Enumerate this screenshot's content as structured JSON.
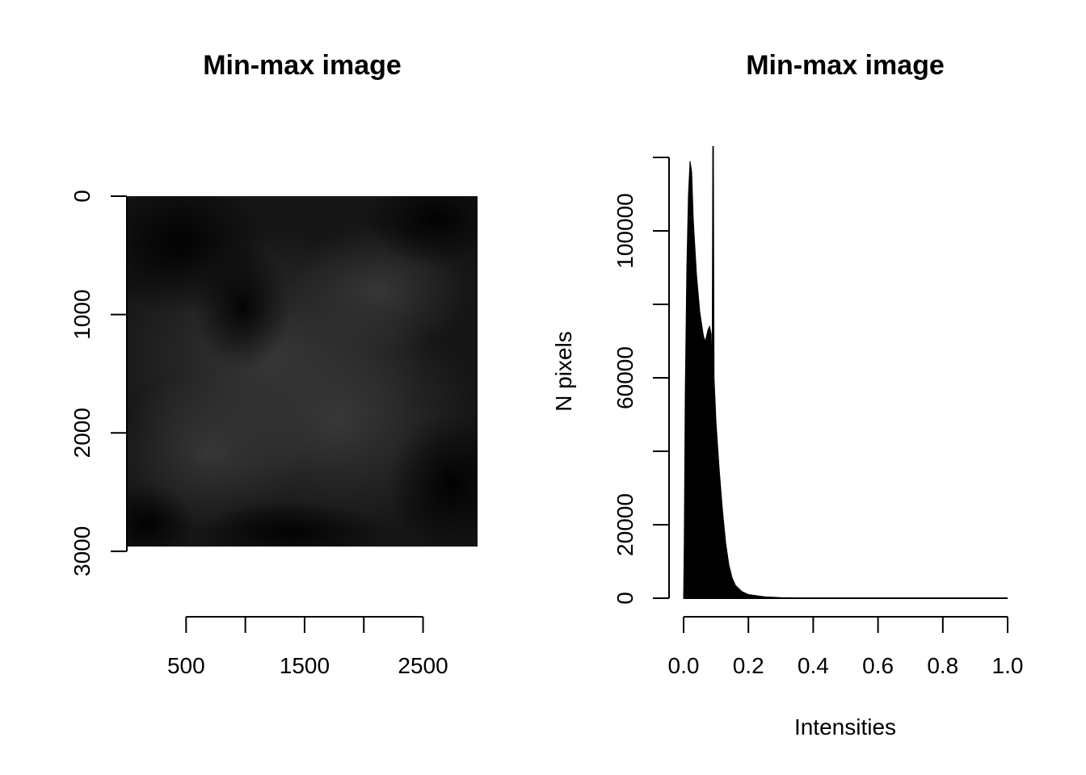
{
  "chart_data": [
    {
      "type": "image",
      "title": "Min-max image",
      "xlabel": "",
      "ylabel": "",
      "x_ticks": [
        500,
        1000,
        1500,
        2000,
        2500
      ],
      "x_tick_labels": [
        "500",
        "",
        "1500",
        "",
        "2500"
      ],
      "y_ticks": [
        0,
        1000,
        2000,
        3000
      ],
      "y_tick_labels": [
        "0",
        "1000",
        "2000",
        "3000"
      ],
      "x_range": [
        0,
        2960
      ],
      "y_range": [
        0,
        2960
      ],
      "y_reversed": true,
      "grid": false
    },
    {
      "type": "histogram",
      "title": "Min-max image",
      "xlabel": "Intensities",
      "ylabel": "N pixels",
      "xlim": [
        0,
        1
      ],
      "ylim": [
        0,
        120000
      ],
      "x_ticks": [
        0.0,
        0.2,
        0.4,
        0.6,
        0.8,
        1.0
      ],
      "x_tick_labels": [
        "0.0",
        "0.2",
        "0.4",
        "0.6",
        "0.8",
        "1.0"
      ],
      "y_ticks": [
        0,
        20000,
        40000,
        60000,
        80000,
        100000,
        120000
      ],
      "y_tick_labels": [
        "0",
        "20000",
        "",
        "60000",
        "",
        "100000",
        ""
      ],
      "grid": false,
      "color": "#000000",
      "curve": [
        [
          0.0,
          0
        ],
        [
          0.002,
          15000
        ],
        [
          0.005,
          55000
        ],
        [
          0.01,
          90000
        ],
        [
          0.015,
          110000
        ],
        [
          0.02,
          119000
        ],
        [
          0.025,
          116000
        ],
        [
          0.03,
          103000
        ],
        [
          0.04,
          88000
        ],
        [
          0.05,
          78000
        ],
        [
          0.06,
          72000
        ],
        [
          0.065,
          70000
        ],
        [
          0.07,
          71000
        ],
        [
          0.075,
          73000
        ],
        [
          0.08,
          74000
        ],
        [
          0.085,
          72000
        ],
        [
          0.088,
          60000
        ],
        [
          0.09,
          123000
        ],
        [
          0.092,
          123000
        ],
        [
          0.094,
          60000
        ],
        [
          0.1,
          48000
        ],
        [
          0.11,
          35000
        ],
        [
          0.12,
          24000
        ],
        [
          0.13,
          15000
        ],
        [
          0.14,
          9000
        ],
        [
          0.15,
          5500
        ],
        [
          0.16,
          3500
        ],
        [
          0.18,
          1800
        ],
        [
          0.2,
          1000
        ],
        [
          0.25,
          400
        ],
        [
          0.3,
          150
        ],
        [
          0.4,
          50
        ],
        [
          0.5,
          20
        ],
        [
          0.7,
          5
        ],
        [
          1.0,
          0
        ]
      ]
    }
  ]
}
